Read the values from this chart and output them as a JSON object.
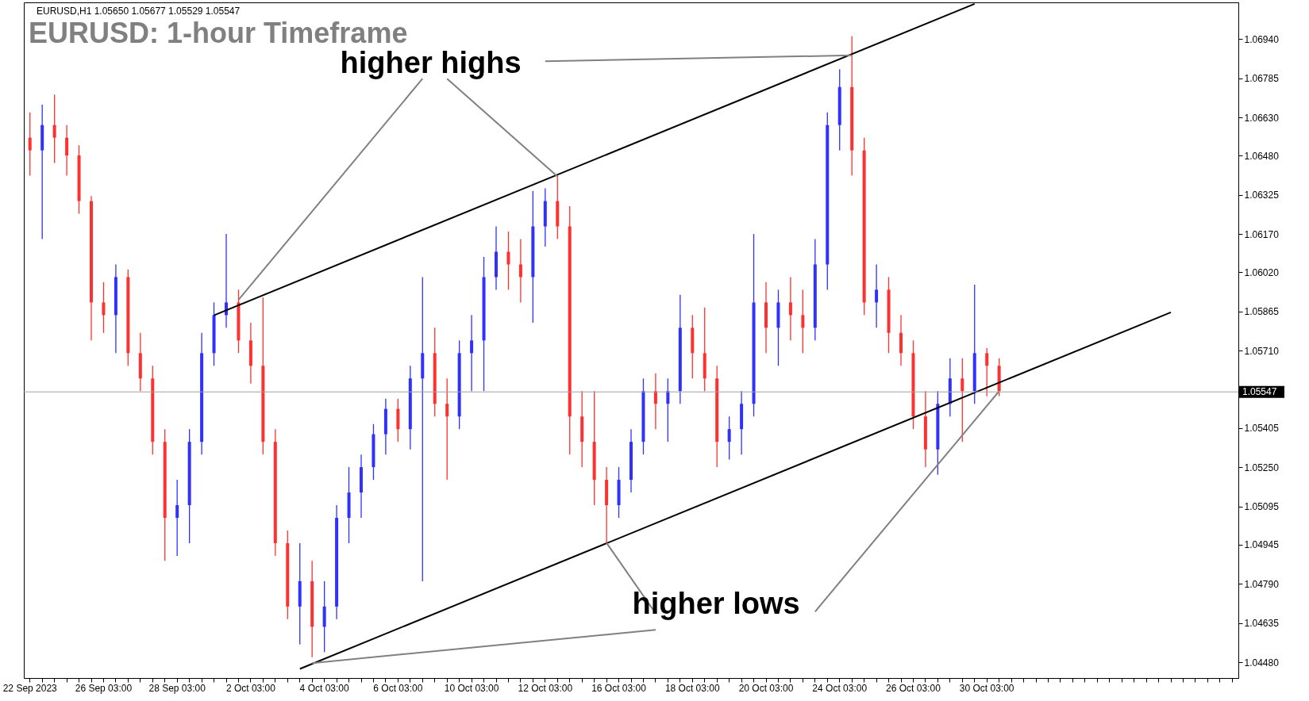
{
  "chart_data": {
    "type": "candlestick",
    "title": "EURUSD: 1-hour Timeframe",
    "annotations": [
      "EURUSD,H1  1.05650 1.05677 1.05529 1.05547",
      "higher highs",
      "higher lows"
    ],
    "categories": [
      "22 Sep 2023",
      null,
      null,
      null,
      null,
      null,
      "26 Sep 03:00",
      null,
      null,
      null,
      null,
      null,
      "28 Sep 03:00",
      null,
      null,
      null,
      null,
      null,
      "2 Oct 03:00",
      null,
      null,
      null,
      null,
      null,
      "4 Oct 03:00",
      null,
      null,
      null,
      null,
      null,
      "6 Oct 03:00",
      null,
      null,
      null,
      null,
      null,
      "10 Oct 03:00",
      null,
      null,
      null,
      null,
      null,
      "12 Oct 03:00",
      null,
      null,
      null,
      null,
      null,
      "16 Oct 03:00",
      null,
      null,
      null,
      null,
      null,
      "18 Oct 03:00",
      null,
      null,
      null,
      null,
      null,
      "20 Oct 03:00",
      null,
      null,
      null,
      null,
      null,
      "24 Oct 03:00",
      null,
      null,
      null,
      null,
      null,
      "26 Oct 03:00",
      null,
      null,
      null,
      null,
      null,
      "30 Oct 03:00",
      null,
      null,
      null,
      null,
      null,
      null,
      null,
      null,
      null,
      null,
      null,
      null,
      null,
      null,
      null,
      null,
      null,
      null,
      null,
      null
    ],
    "ylim": [
      1.04418,
      1.07084
    ],
    "yticks": [
      {
        "value": 1.0448,
        "label": "1.04480"
      },
      {
        "value": 1.04635,
        "label": "1.04635"
      },
      {
        "value": 1.0479,
        "label": "1.04790"
      },
      {
        "value": 1.04945,
        "label": "1.04945"
      },
      {
        "value": 1.05095,
        "label": "1.05095"
      },
      {
        "value": 1.0525,
        "label": "1.05250"
      },
      {
        "value": 1.05405,
        "label": "1.05405"
      },
      {
        "value": 1.0571,
        "label": "1.05710"
      },
      {
        "value": 1.05865,
        "label": "1.05865"
      },
      {
        "value": 1.0602,
        "label": "1.06020"
      },
      {
        "value": 1.0617,
        "label": "1.06170"
      },
      {
        "value": 1.06325,
        "label": "1.06325"
      },
      {
        "value": 1.0648,
        "label": "1.06480"
      },
      {
        "value": 1.0663,
        "label": "1.06630"
      },
      {
        "value": 1.06785,
        "label": "1.06785"
      },
      {
        "value": 1.0694,
        "label": "1.06940"
      }
    ],
    "ref_lines": [
      {
        "axis": "y",
        "value": 1.05547,
        "label": "1.05547",
        "color": "#a0a0a0"
      }
    ],
    "grid": false,
    "series": [
      {
        "ohlc": [
          [
            1.0655,
            1.0665,
            1.064,
            1.065
          ],
          [
            1.065,
            1.0668,
            1.0615,
            1.066
          ],
          [
            1.066,
            1.0672,
            1.0645,
            1.0655
          ],
          [
            1.0655,
            1.066,
            1.064,
            1.0648
          ],
          [
            1.0648,
            1.0652,
            1.0625,
            1.063
          ],
          [
            1.063,
            1.0632,
            1.0575,
            1.059
          ],
          [
            1.059,
            1.0598,
            1.0578,
            1.0585
          ],
          [
            1.0585,
            1.0605,
            1.057,
            1.06
          ],
          [
            1.06,
            1.0603,
            1.0565,
            1.057
          ],
          [
            1.057,
            1.0578,
            1.0555,
            1.056
          ],
          [
            1.056,
            1.0565,
            1.053,
            1.0535
          ],
          [
            1.0535,
            1.054,
            1.0488,
            1.0505
          ],
          [
            1.0505,
            1.052,
            1.049,
            1.051
          ],
          [
            1.051,
            1.054,
            1.0495,
            1.0535
          ],
          [
            1.0535,
            1.0578,
            1.053,
            1.057
          ],
          [
            1.057,
            1.059,
            1.0565,
            1.0585
          ],
          [
            1.0585,
            1.0617,
            1.058,
            1.059
          ],
          [
            1.059,
            1.0595,
            1.057,
            1.0575
          ],
          [
            1.0575,
            1.0582,
            1.0558,
            1.0565
          ],
          [
            1.0565,
            1.0592,
            1.053,
            1.0535
          ],
          [
            1.0535,
            1.054,
            1.049,
            1.0495
          ],
          [
            1.0495,
            1.05,
            1.0465,
            1.047
          ],
          [
            1.047,
            1.0495,
            1.0455,
            1.048
          ],
          [
            1.048,
            1.0488,
            1.045,
            1.0462
          ],
          [
            1.0462,
            1.048,
            1.0452,
            1.047
          ],
          [
            1.047,
            1.051,
            1.0465,
            1.0505
          ],
          [
            1.0505,
            1.0525,
            1.0495,
            1.0515
          ],
          [
            1.0515,
            1.053,
            1.0505,
            1.0525
          ],
          [
            1.0525,
            1.0542,
            1.052,
            1.0538
          ],
          [
            1.0538,
            1.0552,
            1.053,
            1.0548
          ],
          [
            1.0548,
            1.0552,
            1.0535,
            1.054
          ],
          [
            1.054,
            1.0565,
            1.0532,
            1.056
          ],
          [
            1.056,
            1.06,
            1.048,
            1.057
          ],
          [
            1.057,
            1.058,
            1.0545,
            1.055
          ],
          [
            1.055,
            1.056,
            1.052,
            1.0545
          ],
          [
            1.0545,
            1.0575,
            1.054,
            1.057
          ],
          [
            1.057,
            1.0585,
            1.0555,
            1.0575
          ],
          [
            1.0575,
            1.0608,
            1.0555,
            1.06
          ],
          [
            1.06,
            1.062,
            1.0595,
            1.061
          ],
          [
            1.061,
            1.0618,
            1.0595,
            1.0605
          ],
          [
            1.0605,
            1.0615,
            1.059,
            1.06
          ],
          [
            1.06,
            1.0634,
            1.0582,
            1.062
          ],
          [
            1.062,
            1.0635,
            1.0612,
            1.063
          ],
          [
            1.063,
            1.064,
            1.0615,
            1.062
          ],
          [
            1.062,
            1.0628,
            1.053,
            1.0545
          ],
          [
            1.0545,
            1.0555,
            1.0525,
            1.0535
          ],
          [
            1.0535,
            1.0555,
            1.051,
            1.052
          ],
          [
            1.052,
            1.0525,
            1.0495,
            1.051
          ],
          [
            1.051,
            1.0525,
            1.0505,
            1.052
          ],
          [
            1.052,
            1.054,
            1.0515,
            1.0535
          ],
          [
            1.0535,
            1.056,
            1.053,
            1.0555
          ],
          [
            1.0555,
            1.0562,
            1.054,
            1.055
          ],
          [
            1.055,
            1.056,
            1.0535,
            1.0555
          ],
          [
            1.0555,
            1.0593,
            1.055,
            1.058
          ],
          [
            1.058,
            1.0585,
            1.056,
            1.057
          ],
          [
            1.057,
            1.0588,
            1.0555,
            1.056
          ],
          [
            1.056,
            1.0565,
            1.0525,
            1.0535
          ],
          [
            1.0535,
            1.0545,
            1.0528,
            1.054
          ],
          [
            1.054,
            1.0555,
            1.053,
            1.055
          ],
          [
            1.055,
            1.0617,
            1.0545,
            1.059
          ],
          [
            1.059,
            1.0598,
            1.057,
            1.058
          ],
          [
            1.058,
            1.0595,
            1.0565,
            1.059
          ],
          [
            1.059,
            1.06,
            1.0575,
            1.0585
          ],
          [
            1.0585,
            1.0595,
            1.057,
            1.058
          ],
          [
            1.058,
            1.0615,
            1.0575,
            1.0605
          ],
          [
            1.0605,
            1.0665,
            1.0595,
            1.066
          ],
          [
            1.066,
            1.0682,
            1.065,
            1.0675
          ],
          [
            1.0675,
            1.0695,
            1.064,
            1.065
          ],
          [
            1.065,
            1.0655,
            1.0585,
            1.059
          ],
          [
            1.059,
            1.0605,
            1.058,
            1.0595
          ],
          [
            1.0595,
            1.06,
            1.057,
            1.0578
          ],
          [
            1.0578,
            1.0585,
            1.0565,
            1.057
          ],
          [
            1.057,
            1.0575,
            1.054,
            1.0545
          ],
          [
            1.0545,
            1.0555,
            1.0525,
            1.0532
          ],
          [
            1.0532,
            1.0555,
            1.0522,
            1.055
          ],
          [
            1.055,
            1.0568,
            1.0545,
            1.056
          ],
          [
            1.056,
            1.0568,
            1.0535,
            1.0555
          ],
          [
            1.0555,
            1.0597,
            1.055,
            1.057
          ],
          [
            1.057,
            1.0572,
            1.0553,
            1.0565
          ],
          [
            1.0565,
            1.0568,
            1.0553,
            1.0555
          ],
          null,
          null,
          null,
          null,
          null,
          null,
          null,
          null,
          null,
          null,
          null,
          null,
          null,
          null,
          null,
          null,
          null,
          null,
          null
        ],
        "colors": [
          "#ff3030",
          "#3030ff",
          "#ff3030",
          "#ff3030",
          "#ff3030",
          "#ff3030",
          "#ff3030",
          "#3030ff",
          "#ff3030",
          "#ff3030",
          "#ff3030",
          "#ff3030",
          "#3030ff",
          "#3030ff",
          "#3030ff",
          "#3030ff",
          "#3030ff",
          "#ff3030",
          "#ff3030",
          "#ff3030",
          "#ff3030",
          "#ff3030",
          "#3030ff",
          "#ff3030",
          "#3030ff",
          "#3030ff",
          "#3030ff",
          "#3030ff",
          "#3030ff",
          "#3030ff",
          "#ff3030",
          "#3030ff",
          "#3030ff",
          "#ff3030",
          "#ff3030",
          "#3030ff",
          "#3030ff",
          "#3030ff",
          "#3030ff",
          "#ff3030",
          "#ff3030",
          "#3030ff",
          "#3030ff",
          "#ff3030",
          "#ff3030",
          "#ff3030",
          "#ff3030",
          "#ff3030",
          "#3030ff",
          "#3030ff",
          "#3030ff",
          "#ff3030",
          "#3030ff",
          "#3030ff",
          "#ff3030",
          "#ff3030",
          "#ff3030",
          "#3030ff",
          "#3030ff",
          "#3030ff",
          "#ff3030",
          "#3030ff",
          "#ff3030",
          "#ff3030",
          "#3030ff",
          "#3030ff",
          "#3030ff",
          "#ff3030",
          "#ff3030",
          "#3030ff",
          "#ff3030",
          "#ff3030",
          "#ff3030",
          "#ff3030",
          "#3030ff",
          "#3030ff",
          "#ff3030",
          "#3030ff",
          "#ff3030",
          "#ff3030",
          null,
          null,
          null,
          null,
          null,
          null,
          null,
          null,
          null,
          null,
          null,
          null,
          null,
          null,
          null,
          null,
          null,
          null,
          null
        ]
      },
      {
        "type": "line",
        "color": "#000000",
        "values": [
          null,
          null,
          null,
          null,
          null,
          null,
          null,
          null,
          null,
          null,
          null,
          null,
          null,
          null,
          null,
          1.05849,
          null,
          null,
          null,
          null,
          null,
          null,
          null,
          null,
          null,
          null,
          null,
          null,
          null,
          null,
          null,
          null,
          null,
          null,
          null,
          null,
          null,
          null,
          null,
          null,
          null,
          null,
          null,
          null,
          null,
          null,
          null,
          null,
          null,
          null,
          null,
          null,
          null,
          null,
          null,
          null,
          null,
          null,
          null,
          null,
          null,
          null,
          null,
          null,
          null,
          null,
          null,
          null,
          null,
          null,
          null,
          null,
          null,
          null,
          null,
          null,
          null,
          1.07078,
          null,
          null,
          null,
          null,
          null,
          null,
          null,
          null,
          null,
          null,
          null,
          null,
          null,
          null,
          null,
          null,
          null,
          null,
          null,
          null,
          null
        ]
      },
      {
        "type": "line",
        "color": "#000000",
        "values": [
          null,
          null,
          null,
          null,
          null,
          null,
          null,
          null,
          null,
          null,
          null,
          null,
          null,
          null,
          null,
          null,
          null,
          null,
          null,
          null,
          null,
          null,
          1.04454,
          null,
          null,
          null,
          null,
          null,
          null,
          null,
          null,
          null,
          null,
          null,
          null,
          null,
          null,
          null,
          null,
          null,
          null,
          null,
          null,
          null,
          null,
          null,
          null,
          null,
          null,
          null,
          null,
          null,
          null,
          null,
          null,
          null,
          null,
          null,
          null,
          null,
          null,
          null,
          null,
          null,
          null,
          null,
          null,
          null,
          null,
          null,
          null,
          null,
          null,
          null,
          null,
          null,
          null,
          null,
          null,
          null,
          null,
          null,
          null,
          null,
          null,
          null,
          null,
          null,
          null,
          null,
          null,
          null,
          null,
          1.05861,
          null,
          null,
          null,
          null,
          null
        ]
      },
      {
        "type": "line",
        "color": "#808080",
        "values": [
          null,
          null,
          null,
          null,
          null,
          null,
          null,
          null,
          null,
          null,
          null,
          null,
          null,
          null,
          null,
          null,
          null,
          1.0591,
          null,
          null,
          null,
          null,
          null,
          null,
          null,
          null,
          null,
          null,
          null,
          null,
          null,
          null,
          1.06783,
          null,
          null,
          null,
          null,
          null,
          null,
          null,
          null,
          null,
          null,
          null,
          null,
          null,
          null,
          null,
          null,
          null,
          null,
          null,
          null,
          null,
          null,
          null,
          null,
          null,
          null,
          null,
          null,
          null,
          null,
          null,
          null,
          null,
          null,
          null,
          null,
          null,
          null,
          null,
          null,
          null,
          null,
          null,
          null,
          null,
          null,
          null,
          null,
          null,
          null,
          null,
          null,
          null,
          null,
          null,
          null,
          null,
          null,
          null,
          null,
          null,
          null,
          null,
          null,
          null,
          null
        ]
      },
      {
        "type": "line",
        "color": "#808080",
        "values": [
          null,
          null,
          null,
          null,
          null,
          null,
          null,
          null,
          null,
          null,
          null,
          null,
          null,
          null,
          null,
          null,
          null,
          null,
          null,
          null,
          null,
          null,
          null,
          null,
          null,
          null,
          null,
          null,
          null,
          null,
          null,
          null,
          null,
          null,
          1.06783,
          null,
          null,
          null,
          null,
          null,
          null,
          null,
          null,
          1.06397,
          null,
          null,
          null,
          null,
          null,
          null,
          null,
          null,
          null,
          null,
          null,
          null,
          null,
          null,
          null,
          null,
          null,
          null,
          null,
          null,
          null,
          null,
          null,
          null,
          null,
          null,
          null,
          null,
          null,
          null,
          null,
          null,
          null,
          null,
          null,
          null,
          null,
          null,
          null,
          null,
          null,
          null,
          null,
          null,
          null,
          null,
          null,
          null,
          null,
          null,
          null,
          null,
          null,
          null,
          null
        ]
      },
      {
        "type": "line",
        "color": "#808080",
        "values": [
          null,
          null,
          null,
          null,
          null,
          null,
          null,
          null,
          null,
          null,
          null,
          null,
          null,
          null,
          null,
          null,
          null,
          null,
          null,
          null,
          null,
          null,
          null,
          null,
          null,
          null,
          null,
          null,
          null,
          null,
          null,
          null,
          null,
          null,
          null,
          null,
          null,
          null,
          null,
          null,
          null,
          null,
          1.06852,
          null,
          null,
          null,
          null,
          null,
          null,
          null,
          null,
          null,
          null,
          null,
          null,
          null,
          null,
          null,
          null,
          null,
          null,
          null,
          null,
          null,
          null,
          null,
          null,
          1.06875,
          null,
          null,
          null,
          null,
          null,
          null,
          null,
          null,
          null,
          null,
          null,
          null,
          null,
          null,
          null,
          null,
          null,
          null,
          null,
          null,
          null,
          null,
          null,
          null,
          null,
          null,
          null,
          null,
          null,
          null,
          null
        ]
      },
      {
        "type": "line",
        "color": "#808080",
        "values": [
          null,
          null,
          null,
          null,
          null,
          null,
          null,
          null,
          null,
          null,
          null,
          null,
          null,
          null,
          null,
          null,
          null,
          null,
          null,
          null,
          null,
          null,
          null,
          null,
          null,
          null,
          null,
          null,
          null,
          null,
          null,
          null,
          null,
          null,
          null,
          null,
          null,
          null,
          null,
          null,
          null,
          null,
          null,
          null,
          null,
          null,
          null,
          1.04951,
          null,
          null,
          null,
          1.04673,
          null,
          null,
          null,
          null,
          null,
          null,
          null,
          null,
          null,
          null,
          null,
          null,
          null,
          null,
          null,
          null,
          null,
          null,
          null,
          null,
          null,
          null,
          null,
          null,
          null,
          null,
          null,
          null,
          null,
          null,
          null,
          null,
          null,
          null,
          null,
          null,
          null,
          null,
          null,
          null,
          null,
          null,
          null,
          null,
          null,
          null,
          null
        ]
      },
      {
        "type": "line",
        "color": "#808080",
        "values": [
          null,
          null,
          null,
          null,
          null,
          null,
          null,
          null,
          null,
          null,
          null,
          null,
          null,
          null,
          null,
          null,
          null,
          null,
          null,
          null,
          null,
          null,
          null,
          1.04477,
          null,
          null,
          null,
          null,
          null,
          null,
          null,
          null,
          null,
          null,
          null,
          null,
          null,
          null,
          null,
          null,
          null,
          null,
          null,
          null,
          null,
          null,
          null,
          null,
          null,
          null,
          null,
          1.04608,
          null,
          null,
          null,
          null,
          null,
          null,
          null,
          null,
          null,
          null,
          null,
          null,
          null,
          null,
          null,
          null,
          null,
          null,
          null,
          null,
          null,
          null,
          null,
          null,
          null,
          null,
          null,
          null,
          null,
          null,
          null,
          null,
          null,
          null,
          null,
          null,
          null,
          null,
          null,
          null,
          null,
          null,
          null,
          null,
          null,
          null,
          null
        ]
      },
      {
        "type": "line",
        "color": "#808080",
        "values": [
          null,
          null,
          null,
          null,
          null,
          null,
          null,
          null,
          null,
          null,
          null,
          null,
          null,
          null,
          null,
          null,
          null,
          null,
          null,
          null,
          null,
          null,
          null,
          null,
          null,
          null,
          null,
          null,
          null,
          null,
          null,
          null,
          null,
          null,
          null,
          null,
          null,
          null,
          null,
          null,
          null,
          null,
          null,
          null,
          null,
          null,
          null,
          null,
          null,
          null,
          null,
          null,
          null,
          null,
          null,
          null,
          null,
          null,
          null,
          null,
          null,
          null,
          null,
          null,
          1.0468,
          null,
          null,
          null,
          null,
          null,
          null,
          null,
          null,
          null,
          null,
          null,
          null,
          null,
          null,
          1.0555,
          null,
          null,
          null,
          null,
          null,
          null,
          null,
          null,
          null,
          null,
          null,
          null,
          null,
          null,
          null,
          null,
          null,
          null,
          null
        ]
      }
    ]
  }
}
